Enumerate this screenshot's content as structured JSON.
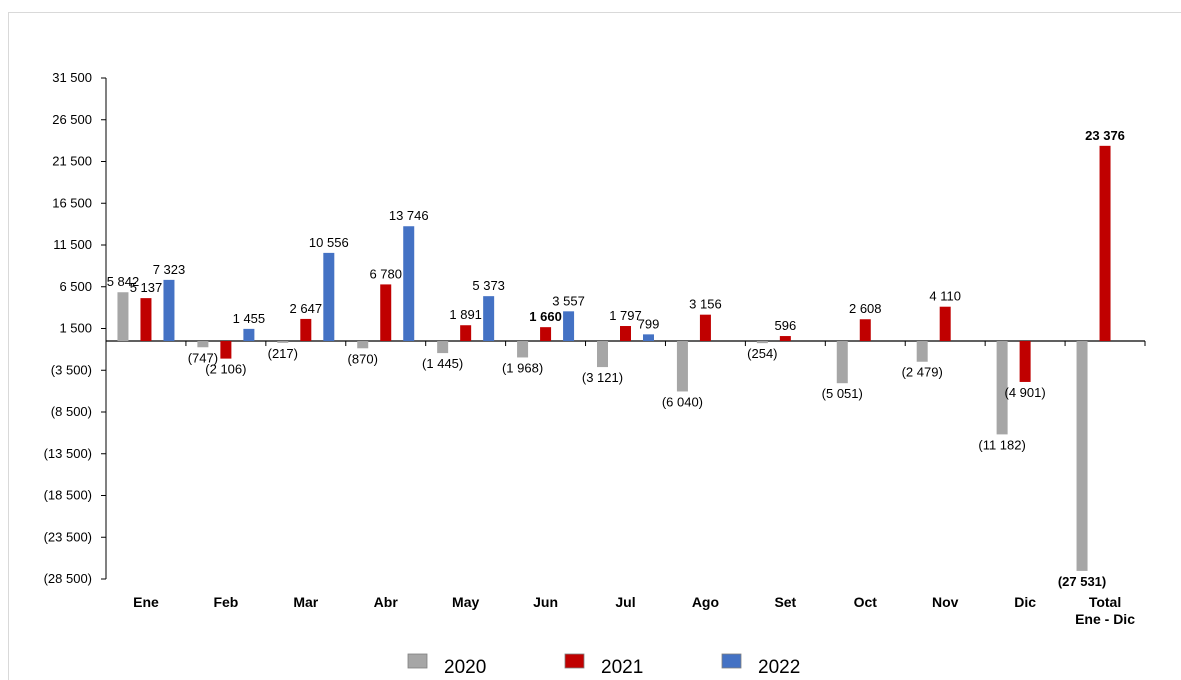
{
  "chart_data": {
    "type": "bar",
    "categories": [
      "Ene",
      "Feb",
      "Mar",
      "Abr",
      "May",
      "Jun",
      "Jul",
      "Ago",
      "Set",
      "Oct",
      "Nov",
      "Dic",
      "Total Ene - Dic"
    ],
    "category_lines": [
      [
        "Ene"
      ],
      [
        "Feb"
      ],
      [
        "Mar"
      ],
      [
        "Abr"
      ],
      [
        "May"
      ],
      [
        "Jun"
      ],
      [
        "Jul"
      ],
      [
        "Ago"
      ],
      [
        "Set"
      ],
      [
        "Oct"
      ],
      [
        "Nov"
      ],
      [
        "Dic"
      ],
      [
        "Total",
        "Ene - Dic"
      ]
    ],
    "series": [
      {
        "name": "2020",
        "color": "#a6a6a6",
        "values": [
          5842,
          -747,
          -217,
          -870,
          -1445,
          -1968,
          -3121,
          -6040,
          -254,
          -5051,
          -2479,
          -11182,
          -27531
        ],
        "labels": [
          "5 842",
          "(747)",
          "(217)",
          "(870)",
          "(1 445)",
          "(1 968)",
          "(3 121)",
          "(6 040)",
          "(254)",
          "(5 051)",
          "(2 479)",
          "(11 182)",
          "(27 531)"
        ],
        "bold": [
          false,
          false,
          false,
          false,
          false,
          false,
          false,
          false,
          false,
          false,
          false,
          false,
          true
        ]
      },
      {
        "name": "2021",
        "color": "#c00000",
        "values": [
          5137,
          -2106,
          2647,
          6780,
          1891,
          1660,
          1797,
          3156,
          596,
          2608,
          4110,
          -4901,
          23376
        ],
        "labels": [
          "5 137",
          "(2 106)",
          "2 647",
          "6 780",
          "1 891",
          "1 660",
          "1 797",
          "3 156",
          "596",
          "2 608",
          "4 110",
          "(4 901)",
          "23 376"
        ],
        "bold": [
          false,
          false,
          false,
          false,
          false,
          true,
          false,
          false,
          false,
          false,
          false,
          false,
          true
        ]
      },
      {
        "name": "2022",
        "color": "#4472c4",
        "values": [
          7323,
          1455,
          10556,
          13746,
          5373,
          3557,
          799,
          null,
          null,
          null,
          null,
          null,
          null
        ],
        "labels": [
          "7 323",
          "1 455",
          "10 556",
          "13 746",
          "5 373",
          "3 557",
          "799",
          null,
          null,
          null,
          null,
          null,
          null
        ],
        "bold": [
          false,
          false,
          false,
          false,
          false,
          false,
          false,
          false,
          false,
          false,
          false,
          false,
          false
        ]
      }
    ],
    "y_ticks": [
      31500,
      26500,
      21500,
      16500,
      11500,
      6500,
      1500,
      -3500,
      -8500,
      -13500,
      -18500,
      -23500,
      -28500
    ],
    "y_tick_labels": [
      "31 500",
      "26 500",
      "21 500",
      "16 500",
      "11 500",
      "6 500",
      "1 500",
      "(3 500)",
      "(8 500)",
      "(13 500)",
      "(18 500)",
      "(23 500)",
      "(28 500)"
    ],
    "ylim": [
      -28500,
      31500
    ],
    "title": "",
    "xlabel": "",
    "ylabel": "",
    "grid": false,
    "legend_position": "bottom"
  }
}
